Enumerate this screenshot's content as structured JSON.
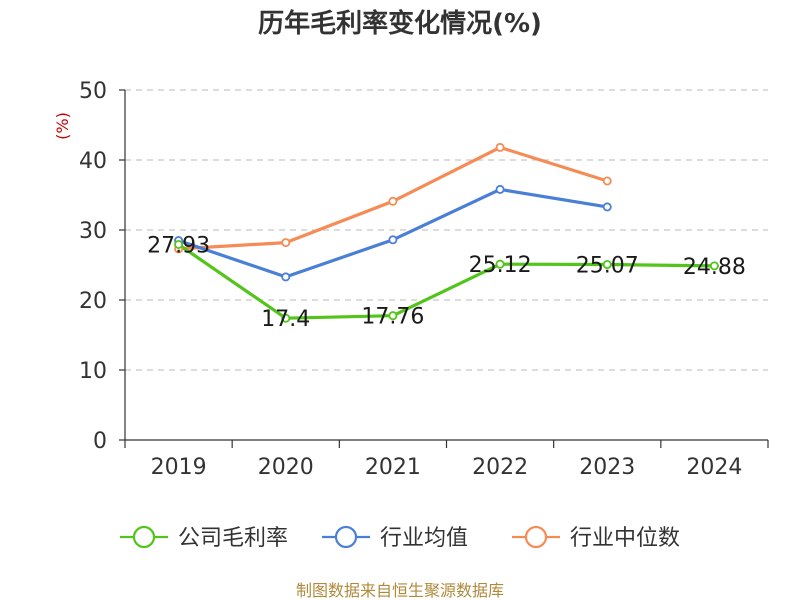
{
  "chart_data": {
    "type": "line",
    "title": "历年毛利率变化情况(%)",
    "ylabel": "(%)",
    "xlabel": "",
    "categories": [
      "2019",
      "2020",
      "2021",
      "2022",
      "2023",
      "2024"
    ],
    "ylim": [
      0,
      50
    ],
    "yticks": [
      0,
      10,
      20,
      30,
      40,
      50
    ],
    "grid": "horizontal-dashed",
    "legend_position": "bottom",
    "series": [
      {
        "name": "公司毛利率",
        "color": "#52c41a",
        "values": [
          27.93,
          17.4,
          17.76,
          25.12,
          25.07,
          24.88
        ],
        "labels": [
          "27.93",
          "17.4",
          "17.76",
          "25.12",
          "25.07",
          "24.88"
        ]
      },
      {
        "name": "行业均值",
        "color": "#4a7fd8",
        "values": [
          28.5,
          23.3,
          28.6,
          35.8,
          33.3,
          null
        ]
      },
      {
        "name": "行业中位数",
        "color": "#f58c56",
        "values": [
          27.3,
          28.2,
          34.1,
          41.8,
          37.0,
          null
        ]
      }
    ],
    "source": "制图数据来自恒生聚源数据库"
  }
}
